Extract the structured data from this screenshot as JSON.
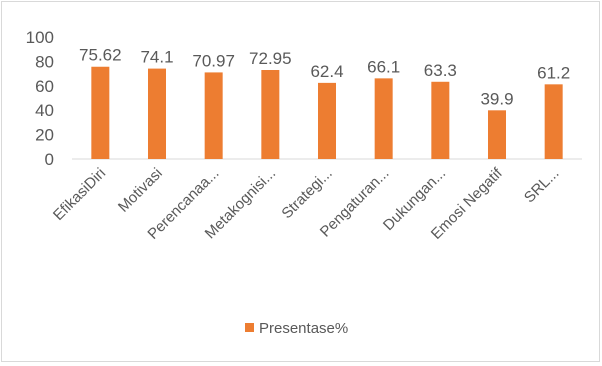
{
  "chart_data": {
    "type": "bar",
    "title": "",
    "xlabel": "",
    "ylabel": "",
    "ylim": [
      0,
      100
    ],
    "yticks": [
      0,
      20,
      40,
      60,
      80,
      100
    ],
    "grid": false,
    "legend_position": "bottom",
    "categories": [
      "EfikasiDiri",
      "Motivasi",
      "Perencanaa...",
      "Metakognisi...",
      "Strategi...",
      "Pengaturan...",
      "Dukungan...",
      "Emosi Negatif",
      "SRL..."
    ],
    "series": [
      {
        "name": "Presentase%",
        "color": "#ED7D31",
        "values": [
          75.62,
          74.1,
          70.97,
          72.95,
          62.4,
          66.1,
          63.3,
          39.9,
          61.2
        ],
        "labels": [
          "75.62",
          "74.1",
          "70.97",
          "72.95",
          "62.4",
          "66.1",
          "63.3",
          "39.9",
          "61.2"
        ]
      }
    ]
  }
}
